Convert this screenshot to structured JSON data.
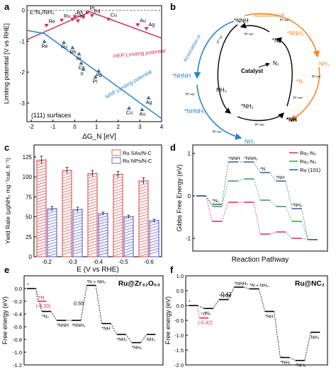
{
  "panel_letters": {
    "a": "a",
    "b": "b",
    "c": "c",
    "d": "d",
    "e": "e",
    "f": "f"
  },
  "colors": {
    "red": "#d12f5a",
    "blue": "#2a86c8",
    "orange": "#f08a24",
    "darkblue": "#1f3e8a",
    "navy": "#2c5aa0",
    "green": "#2f9e44",
    "barred": "#e06060",
    "barblue": "#6a6ad0"
  },
  "chart_data": [
    {
      "panel": "a",
      "type": "scatter",
      "top_label": "E⁰N₂/NH₃",
      "xlabel": "ΔG_N [eV]",
      "ylabel": "Limiting potential [V vs RHE]",
      "xlim": [
        -2.2,
        4
      ],
      "ylim": [
        -3.6,
        0.15
      ],
      "xticks": [
        "-2",
        "-1",
        "0",
        "1",
        "2",
        "3",
        "4"
      ],
      "yticks": [
        "0",
        "-1",
        "-2",
        "-3"
      ],
      "surface_label": "(111) surfaces",
      "her_label": "HER Limiting potential",
      "nrr_label": "NRR Limiting potential",
      "her_points": [
        {
          "name": "Re",
          "x": -1.3,
          "y": -0.5
        },
        {
          "name": "Ru",
          "x": -0.6,
          "y": -0.33
        },
        {
          "name": "Co",
          "x": -0.1,
          "y": -0.3
        },
        {
          "name": "Ni",
          "x": 0.15,
          "y": -0.35
        },
        {
          "name": "Rh",
          "x": 0.0,
          "y": -0.22
        },
        {
          "name": "Ir",
          "x": 0.4,
          "y": -0.22
        },
        {
          "name": "Pt",
          "x": 0.6,
          "y": -0.08
        },
        {
          "name": "Pd",
          "x": 0.8,
          "y": -0.18
        },
        {
          "name": "Cu",
          "x": 1.55,
          "y": -0.3
        },
        {
          "name": "Au",
          "x": 2.9,
          "y": -0.48
        },
        {
          "name": "Ag",
          "x": 3.3,
          "y": -0.6
        }
      ],
      "nrr_points": [
        {
          "name": "Re",
          "x": -1.4,
          "y": -1.0
        },
        {
          "name": "Ru",
          "x": -0.5,
          "y": -1.03
        },
        {
          "name": "Rh",
          "x": -0.1,
          "y": -1.2
        },
        {
          "name": "Ni",
          "x": 0.2,
          "y": -1.4
        },
        {
          "name": "Co",
          "x": 0.3,
          "y": -1.7
        },
        {
          "name": "Ir",
          "x": 0.4,
          "y": -1.9
        },
        {
          "name": "Pd",
          "x": 1.1,
          "y": -1.95
        },
        {
          "name": "Pt",
          "x": 0.95,
          "y": -2.15
        },
        {
          "name": "Cu",
          "x": 2.5,
          "y": -3.15
        },
        {
          "name": "Au",
          "x": 3.1,
          "y": -3.2
        },
        {
          "name": "Ag",
          "x": 3.4,
          "y": -2.82
        }
      ]
    },
    {
      "panel": "c",
      "type": "bar",
      "xlabel": "E (V vs RHE)",
      "ylabel": "Yield Rate (μgNH₃ mg⁻¹cat. h⁻¹)",
      "categories": [
        "-0.2",
        "-0.3",
        "-0.4",
        "-0.5",
        "-0.6"
      ],
      "ylim": [
        0,
        140
      ],
      "yticks": [
        "0",
        "25",
        "50",
        "75",
        "100",
        "125"
      ],
      "series": [
        {
          "name": "Ru SAs/N-C",
          "values": [
            121,
            108,
            104,
            103,
            95
          ],
          "errors": [
            5,
            4,
            4,
            4,
            4
          ]
        },
        {
          "name": "Ru NPs/N-C",
          "values": [
            60,
            59,
            54,
            50,
            45
          ],
          "errors": [
            3,
            3,
            2,
            2,
            2
          ]
        }
      ]
    },
    {
      "panel": "d",
      "type": "line",
      "xlabel": "Reaction Pathway",
      "ylabel": "Gibbs Free Energy (eV)",
      "ylim": [
        -1.3,
        1.2
      ],
      "yticks": [
        "-1",
        "0",
        "1"
      ],
      "legend": [
        "Ru₁-N₃",
        "Ru₁-N₄",
        "Ru (101)"
      ],
      "step_labels": [
        "*N₂",
        "*NNH",
        "*NNH₂",
        "*N",
        "*NH",
        "*NH₂"
      ],
      "series": [
        {
          "name": "Ru₁-N₃",
          "values": [
            0,
            -0.6,
            -0.15,
            -0.15,
            -0.9,
            -0.85,
            -1.0,
            -1.03
          ]
        },
        {
          "name": "Ru₁-N₄",
          "values": [
            0,
            -0.25,
            0.35,
            0.4,
            -0.1,
            -0.25,
            -0.6,
            -1.03
          ]
        },
        {
          "name": "Ru (101)",
          "values": [
            0,
            -0.2,
            0.8,
            0.8,
            0.55,
            0.35,
            -0.3,
            -1.03
          ]
        }
      ]
    },
    {
      "panel": "e",
      "type": "line",
      "title": "Ru@Zr₃₂O₆₃",
      "ylabel": "Free energy (eV)",
      "ylim": [
        -1.2,
        0.2
      ],
      "yticks": [
        "0.0",
        "-0.2",
        "-0.4",
        "-0.6",
        "-0.8",
        "-1.0",
        "-1.2"
      ],
      "labels": [
        "*",
        "*N₂",
        "*NNH",
        "*NNH₂",
        "*N + NH₃",
        "*NH",
        "*NH₂",
        "*NH₃",
        "NH₃"
      ],
      "values": [
        0,
        -0.36,
        -0.5,
        -0.5,
        0.05,
        -0.55,
        -0.72,
        -0.85,
        -0.72
      ],
      "side_label": "*H",
      "side_value": -0.2,
      "side_value_label": "(-0.20)",
      "barrier_label": "0.55"
    },
    {
      "panel": "f",
      "type": "line",
      "title": "Ru@NC₂",
      "ylabel": "Free energy (eV)",
      "ylim": [
        -2.0,
        1.0
      ],
      "yticks": [
        "1.0",
        "0.5",
        "0.0",
        "-0.5",
        "-1.0",
        "-1.5",
        "-2.0"
      ],
      "labels": [
        "*",
        "*N₂",
        "*NNH",
        "*NNH₂",
        "*N + NH₃",
        "*NH",
        "*NH₂",
        "*NH₃",
        "NH₃"
      ],
      "values": [
        0,
        -0.1,
        0.2,
        0.62,
        0.56,
        -0.2,
        -1.75,
        -1.85,
        -0.9
      ],
      "side_label": "*H",
      "side_value": -0.42,
      "side_value_label": "(-0.42)",
      "barrier_label": "0.42"
    }
  ],
  "scheme_b": {
    "assoc_a": "Association-A",
    "assoc_b": "Association-B",
    "center": "Catalyst",
    "n2": "N₂",
    "nodes": {
      "nnh": "*NNH",
      "nhnh": "*NHNH",
      "nhnh2": "*NHNH₂",
      "nh3_bottom": "NH₃",
      "nh": "*NH",
      "nh2": "*NH₂",
      "nh3_left": "NH₃",
      "n2_top": "*N₂",
      "nnh2": "*NNH₂",
      "n": "*N",
      "nh3_right": "NH₃"
    },
    "step": "H⁺+e⁻"
  }
}
